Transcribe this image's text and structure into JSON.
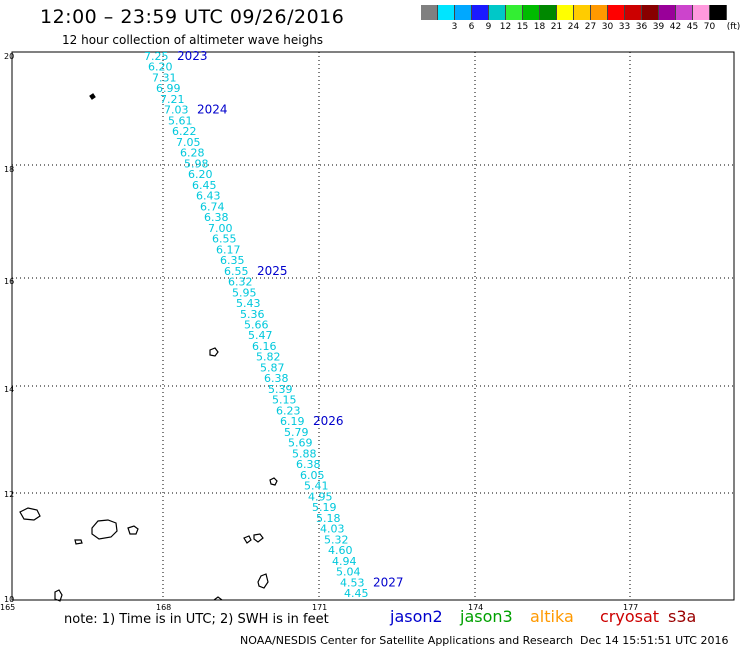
{
  "header": {
    "title": "12:00 – 23:59 UTC 09/26/2016",
    "subtitle": "12 hour collection of altimeter wave heighs"
  },
  "legend": {
    "unit": "(ft)",
    "items": [
      {
        "label": "",
        "color": "#808080"
      },
      {
        "label": "3",
        "color": "#00e5ff"
      },
      {
        "label": "6",
        "color": "#00a8ff"
      },
      {
        "label": "9",
        "color": "#1a1aff"
      },
      {
        "label": "12",
        "color": "#00c8c8"
      },
      {
        "label": "15",
        "color": "#33ee33"
      },
      {
        "label": "18",
        "color": "#00bb00"
      },
      {
        "label": "21",
        "color": "#008800"
      },
      {
        "label": "24",
        "color": "#ffff00"
      },
      {
        "label": "27",
        "color": "#ffcc00"
      },
      {
        "label": "30",
        "color": "#ff9900"
      },
      {
        "label": "33",
        "color": "#ff0000"
      },
      {
        "label": "36",
        "color": "#cc0000"
      },
      {
        "label": "39",
        "color": "#880000"
      },
      {
        "label": "42",
        "color": "#990099"
      },
      {
        "label": "45",
        "color": "#cc44cc"
      },
      {
        "label": "70",
        "color": "#ff99dd"
      },
      {
        "label": "",
        "color": "#000000"
      }
    ]
  },
  "axes": {
    "lat_ticks": [
      "20",
      "18",
      "16",
      "14",
      "12",
      "10"
    ],
    "lon_ticks": [
      "165",
      "168",
      "171",
      "174",
      "177"
    ]
  },
  "track": {
    "color": "#00c8dc",
    "pass_color": "#0000cc",
    "values": [
      "7.25",
      "6.20",
      "7.31",
      "6.99",
      "7.21",
      "7.03",
      "5.61",
      "6.22",
      "7.05",
      "6.28",
      "5.98",
      "6.20",
      "6.45",
      "6.43",
      "6.74",
      "6.38",
      "7.00",
      "6.55",
      "6.17",
      "6.35",
      "6.55",
      "6.32",
      "5.95",
      "5.43",
      "5.36",
      "5.66",
      "5.47",
      "6.16",
      "5.82",
      "5.87",
      "6.38",
      "5.39",
      "5.15",
      "6.23",
      "6.19",
      "5.79",
      "5.69",
      "5.88",
      "6.38",
      "6.05",
      "5.41",
      "4.95",
      "5.19",
      "5.18",
      "4.03",
      "5.32",
      "4.60",
      "4.94",
      "5.04",
      "4.53",
      "4.45"
    ],
    "passes": [
      {
        "label": "2023",
        "at": 0
      },
      {
        "label": "2024",
        "at": 5
      },
      {
        "label": "2025",
        "at": 20
      },
      {
        "label": "2026",
        "at": 34
      },
      {
        "label": "2027",
        "at": 49
      }
    ]
  },
  "footer": {
    "note": "note: 1) Time is in UTC; 2) SWH is in feet",
    "satellites": [
      {
        "name": "jason2",
        "color": "#0000cc"
      },
      {
        "name": "jason3",
        "color": "#00a000"
      },
      {
        "name": "altika",
        "color": "#ff9900"
      },
      {
        "name": "cryosat",
        "color": "#cc0000"
      },
      {
        "name": "s3a",
        "color": "#990000"
      }
    ],
    "credit": "NOAA/NESDIS Center for Satellite Applications and Research",
    "date": "Dec 14 15:51:51 UTC 2016"
  }
}
